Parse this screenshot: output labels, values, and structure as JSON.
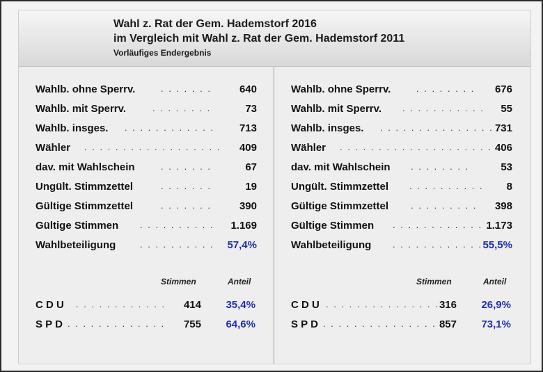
{
  "header": {
    "line1": "Wahl z. Rat der Gem. Hademstorf 2016",
    "line2": "im Vergleich mit Wahl z. Rat der Gem. Hademstorf 2011",
    "sub": "Vorläufiges Endergebnis"
  },
  "left": {
    "rows": [
      {
        "label": "Wahlb. ohne Sperrv.",
        "dots": ". . . . . . .",
        "value": "640"
      },
      {
        "label": "Wahlb. mit Sperrv.",
        "dots": ". . . . . . . .",
        "value": "73"
      },
      {
        "label": "Wahlb. insges.",
        "dots": ". . . . . . . . . . . .",
        "value": "713"
      },
      {
        "label": "Wähler",
        "dots": ". . . . . . . . . . . . . . . . . .",
        "value": "409"
      },
      {
        "label": "dav. mit Wahlschein",
        "dots": ". . . . . . .",
        "value": "67"
      },
      {
        "label": "Ungült. Stimmzettel",
        "dots": ". . . . . . .",
        "value": "19"
      },
      {
        "label": "Gültige Stimmzettel",
        "dots": ". . . . . . .",
        "value": "390"
      },
      {
        "label": "Gültige Stimmen",
        "dots": ". . . . . . . . . .",
        "value": "1.169"
      },
      {
        "label": "Wahlbeteiligung",
        "dots": ". . . . . . . . . .",
        "value": "57,4%"
      }
    ],
    "col_stimmen": "Stimmen",
    "col_anteil": "Anteil",
    "parties": [
      {
        "label": "C D U",
        "dots": ". . . . . . . . . . . .",
        "votes": "414",
        "share": "35,4%"
      },
      {
        "label": "S P D",
        "dots": ". . . . . . . . . . . . .",
        "votes": "755",
        "share": "64,6%"
      }
    ]
  },
  "right": {
    "rows": [
      {
        "label": "Wahlb. ohne Sperrv.",
        "dots": ". . . . . . . .",
        "value": "676"
      },
      {
        "label": "Wahlb. mit Sperrv.",
        "dots": ". . . . . . . . . . .",
        "value": "55"
      },
      {
        "label": "Wahlb. insges.",
        "dots": ". . . . . . . . . . . . . . .",
        "value": "731"
      },
      {
        "label": "Wähler",
        "dots": ". . . . . . . . . . . . . . . . . . . .",
        "value": "406"
      },
      {
        "label": "dav. mit Wahlschein",
        "dots": ". . . . . . . .",
        "value": "53"
      },
      {
        "label": "Ungült. Stimmzettel",
        "dots": ". . . . . . . . . .",
        "value": "8"
      },
      {
        "label": "Gültige Stimmzettel",
        "dots": ". . . . . . . . .",
        "value": "398"
      },
      {
        "label": "Gültige Stimmen",
        "dots": ". . . . . . . . . . . . . .",
        "value": "1.173"
      },
      {
        "label": "Wahlbeteiligung",
        "dots": ". . . . . . . . . . . . .",
        "value": "55,5%"
      }
    ],
    "col_stimmen": "Stimmen",
    "col_anteil": "Anteil",
    "parties": [
      {
        "label": "C D U",
        "dots": ". . . . . . . . . . . . . . .",
        "votes": "316",
        "share": "26,9%"
      },
      {
        "label": "S P D",
        "dots": ". . . . . . . . . . . . . . . .",
        "votes": "857",
        "share": "73,1%"
      }
    ]
  },
  "colors": {
    "percent": "#1f2fb0",
    "header_top": "#f6f6f6",
    "header_bottom": "#d8d8d8"
  }
}
